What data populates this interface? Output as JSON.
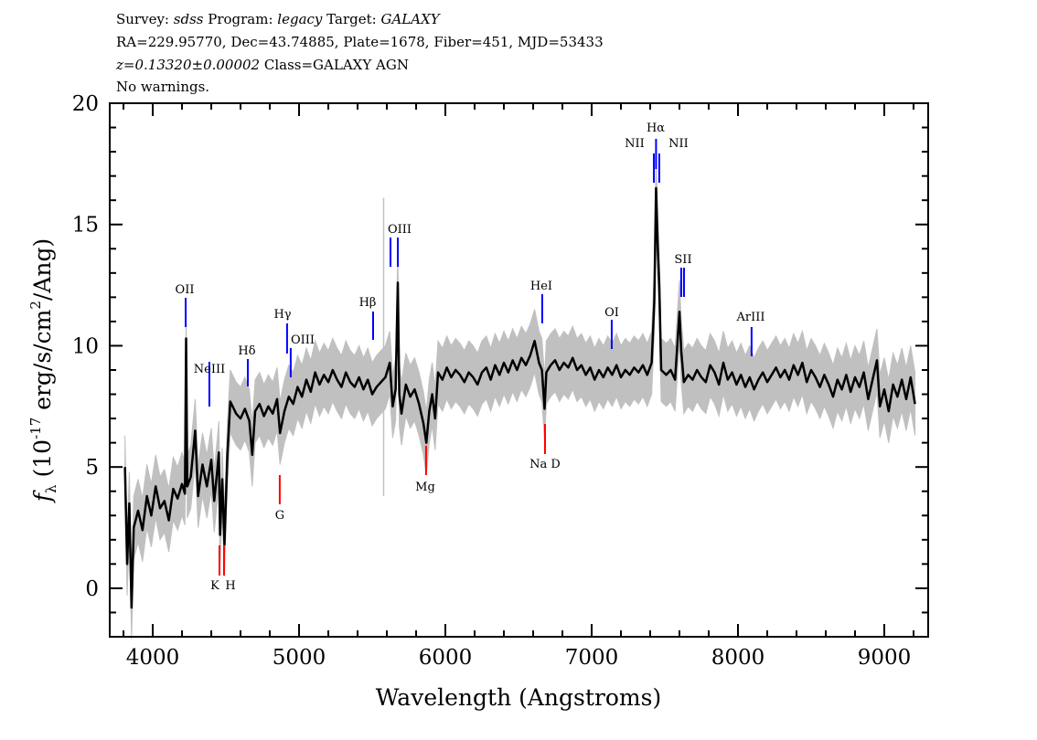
{
  "header": {
    "line1_a": "Survey: ",
    "line1_survey": "sdss",
    "line1_b": " Program: ",
    "line1_program": "legacy",
    "line1_c": " Target: ",
    "line1_target": "GALAXY",
    "line2": "RA=229.95770, Dec=43.74885, Plate=1678, Fiber=451, MJD=53433",
    "line3_z": "z=0.13320±0.00002",
    "line3_class": " Class=GALAXY AGN",
    "line4": "No warnings."
  },
  "chart_data": {
    "type": "line",
    "xlabel": "Wavelength (Angstroms)",
    "ylabel_symbol": "f",
    "ylabel_sub": "λ",
    "ylabel_rest": " (10",
    "ylabel_exp": "-17",
    "ylabel_units": " erg/s/cm",
    "ylabel_exp2": "2",
    "ylabel_end": "/Ang)",
    "xlim": [
      3706,
      9300
    ],
    "ylim": [
      -2,
      20
    ],
    "xticks": [
      4000,
      5000,
      6000,
      7000,
      8000,
      9000
    ],
    "yticks": [
      0,
      5,
      10,
      15,
      20
    ],
    "grid": false,
    "colors": {
      "spectrum": "#000000",
      "noise": "#c0c0c0",
      "emission": "#0000ff",
      "absorption": "#ff0000"
    },
    "sky_line": 5578,
    "spectrum": [
      [
        3810,
        5.0
      ],
      [
        3825,
        1.0
      ],
      [
        3840,
        3.5
      ],
      [
        3855,
        -0.8
      ],
      [
        3870,
        2.5
      ],
      [
        3900,
        3.2
      ],
      [
        3930,
        2.4
      ],
      [
        3960,
        3.8
      ],
      [
        3990,
        3.0
      ],
      [
        4020,
        4.2
      ],
      [
        4050,
        3.3
      ],
      [
        4080,
        3.6
      ],
      [
        4110,
        2.8
      ],
      [
        4140,
        4.1
      ],
      [
        4170,
        3.7
      ],
      [
        4200,
        4.3
      ],
      [
        4220,
        3.9
      ],
      [
        4228,
        10.3
      ],
      [
        4236,
        4.2
      ],
      [
        4260,
        4.6
      ],
      [
        4290,
        6.5
      ],
      [
        4310,
        3.8
      ],
      [
        4340,
        5.1
      ],
      [
        4370,
        4.2
      ],
      [
        4400,
        5.3
      ],
      [
        4420,
        3.6
      ],
      [
        4440,
        4.8
      ],
      [
        4452,
        5.6
      ],
      [
        4460,
        2.2
      ],
      [
        4475,
        4.5
      ],
      [
        4490,
        1.8
      ],
      [
        4510,
        5.5
      ],
      [
        4530,
        7.7
      ],
      [
        4570,
        7.2
      ],
      [
        4600,
        7.0
      ],
      [
        4630,
        7.4
      ],
      [
        4660,
        6.9
      ],
      [
        4680,
        5.5
      ],
      [
        4700,
        7.3
      ],
      [
        4730,
        7.6
      ],
      [
        4760,
        7.1
      ],
      [
        4790,
        7.5
      ],
      [
        4820,
        7.2
      ],
      [
        4850,
        7.8
      ],
      [
        4870,
        6.4
      ],
      [
        4900,
        7.3
      ],
      [
        4930,
        7.9
      ],
      [
        4960,
        7.6
      ],
      [
        4990,
        8.3
      ],
      [
        5020,
        7.9
      ],
      [
        5050,
        8.6
      ],
      [
        5080,
        8.1
      ],
      [
        5110,
        8.9
      ],
      [
        5140,
        8.4
      ],
      [
        5170,
        8.8
      ],
      [
        5200,
        8.5
      ],
      [
        5230,
        9.0
      ],
      [
        5260,
        8.6
      ],
      [
        5290,
        8.3
      ],
      [
        5320,
        8.9
      ],
      [
        5350,
        8.5
      ],
      [
        5380,
        8.3
      ],
      [
        5410,
        8.7
      ],
      [
        5440,
        8.2
      ],
      [
        5470,
        8.6
      ],
      [
        5500,
        8.0
      ],
      [
        5530,
        8.3
      ],
      [
        5560,
        8.5
      ],
      [
        5590,
        8.7
      ],
      [
        5620,
        9.3
      ],
      [
        5640,
        7.5
      ],
      [
        5660,
        8.2
      ],
      [
        5675,
        12.6
      ],
      [
        5685,
        8.0
      ],
      [
        5700,
        7.2
      ],
      [
        5730,
        8.4
      ],
      [
        5760,
        7.9
      ],
      [
        5790,
        8.2
      ],
      [
        5820,
        7.6
      ],
      [
        5850,
        6.8
      ],
      [
        5870,
        6.0
      ],
      [
        5890,
        7.3
      ],
      [
        5910,
        8.0
      ],
      [
        5930,
        7.0
      ],
      [
        5950,
        8.9
      ],
      [
        5980,
        8.6
      ],
      [
        6010,
        9.1
      ],
      [
        6040,
        8.7
      ],
      [
        6070,
        9.0
      ],
      [
        6100,
        8.8
      ],
      [
        6130,
        8.5
      ],
      [
        6160,
        8.9
      ],
      [
        6190,
        8.7
      ],
      [
        6220,
        8.4
      ],
      [
        6250,
        8.9
      ],
      [
        6280,
        9.1
      ],
      [
        6310,
        8.6
      ],
      [
        6340,
        9.2
      ],
      [
        6370,
        8.8
      ],
      [
        6400,
        9.3
      ],
      [
        6430,
        8.9
      ],
      [
        6460,
        9.4
      ],
      [
        6490,
        9.0
      ],
      [
        6520,
        9.5
      ],
      [
        6550,
        9.2
      ],
      [
        6580,
        9.6
      ],
      [
        6610,
        10.2
      ],
      [
        6640,
        9.3
      ],
      [
        6660,
        9.0
      ],
      [
        6678,
        7.4
      ],
      [
        6690,
        8.9
      ],
      [
        6720,
        9.2
      ],
      [
        6750,
        9.4
      ],
      [
        6780,
        9.0
      ],
      [
        6810,
        9.3
      ],
      [
        6840,
        9.1
      ],
      [
        6870,
        9.5
      ],
      [
        6900,
        9.0
      ],
      [
        6930,
        9.2
      ],
      [
        6960,
        8.8
      ],
      [
        6990,
        9.1
      ],
      [
        7020,
        8.6
      ],
      [
        7050,
        9.0
      ],
      [
        7080,
        8.7
      ],
      [
        7110,
        9.1
      ],
      [
        7140,
        8.8
      ],
      [
        7170,
        9.2
      ],
      [
        7200,
        8.7
      ],
      [
        7230,
        9.0
      ],
      [
        7260,
        8.8
      ],
      [
        7290,
        9.1
      ],
      [
        7320,
        8.9
      ],
      [
        7350,
        9.2
      ],
      [
        7380,
        8.8
      ],
      [
        7410,
        9.3
      ],
      [
        7428,
        11.8
      ],
      [
        7440,
        16.5
      ],
      [
        7452,
        14.0
      ],
      [
        7462,
        12.5
      ],
      [
        7475,
        9.0
      ],
      [
        7510,
        8.8
      ],
      [
        7540,
        9.0
      ],
      [
        7570,
        8.6
      ],
      [
        7600,
        11.4
      ],
      [
        7612,
        9.8
      ],
      [
        7630,
        8.5
      ],
      [
        7660,
        8.8
      ],
      [
        7690,
        8.6
      ],
      [
        7720,
        9.0
      ],
      [
        7750,
        8.7
      ],
      [
        7780,
        8.5
      ],
      [
        7810,
        9.2
      ],
      [
        7840,
        8.9
      ],
      [
        7870,
        8.4
      ],
      [
        7900,
        9.3
      ],
      [
        7930,
        8.6
      ],
      [
        7960,
        8.9
      ],
      [
        7990,
        8.4
      ],
      [
        8020,
        8.8
      ],
      [
        8050,
        8.3
      ],
      [
        8080,
        8.7
      ],
      [
        8110,
        8.2
      ],
      [
        8140,
        8.6
      ],
      [
        8170,
        8.9
      ],
      [
        8200,
        8.5
      ],
      [
        8230,
        8.8
      ],
      [
        8260,
        9.1
      ],
      [
        8290,
        8.7
      ],
      [
        8320,
        9.0
      ],
      [
        8350,
        8.6
      ],
      [
        8380,
        9.2
      ],
      [
        8410,
        8.8
      ],
      [
        8440,
        9.3
      ],
      [
        8470,
        8.5
      ],
      [
        8500,
        9.0
      ],
      [
        8530,
        8.7
      ],
      [
        8560,
        8.3
      ],
      [
        8590,
        8.8
      ],
      [
        8620,
        8.4
      ],
      [
        8650,
        7.9
      ],
      [
        8680,
        8.6
      ],
      [
        8710,
        8.2
      ],
      [
        8740,
        8.8
      ],
      [
        8770,
        8.1
      ],
      [
        8800,
        8.7
      ],
      [
        8830,
        8.3
      ],
      [
        8860,
        8.9
      ],
      [
        8890,
        7.8
      ],
      [
        8920,
        8.6
      ],
      [
        8950,
        9.4
      ],
      [
        8970,
        7.5
      ],
      [
        9000,
        8.2
      ],
      [
        9030,
        7.3
      ],
      [
        9060,
        8.4
      ],
      [
        9090,
        7.9
      ],
      [
        9120,
        8.6
      ],
      [
        9150,
        7.8
      ],
      [
        9180,
        8.7
      ],
      [
        9210,
        7.6
      ]
    ],
    "noise_amplitude": 1.3,
    "lines": [
      {
        "label": "OII",
        "wavelength": 4225,
        "kind": "emission"
      },
      {
        "label": "NeIII",
        "wavelength": 4387,
        "kind": "emission"
      },
      {
        "label": "Hδ",
        "wavelength": 4650,
        "kind": "emission"
      },
      {
        "label": "Hγ",
        "wavelength": 4918,
        "kind": "emission"
      },
      {
        "label": "OIII",
        "wavelength": 4943,
        "kind": "emission"
      },
      {
        "label": "Hβ",
        "wavelength": 5506,
        "kind": "emission"
      },
      {
        "label": "",
        "wavelength": 5625,
        "kind": "emission"
      },
      {
        "label": "OIII",
        "wavelength": 5675,
        "kind": "emission"
      },
      {
        "label": "HeI",
        "wavelength": 6662,
        "kind": "emission"
      },
      {
        "label": "OI",
        "wavelength": 7137,
        "kind": "emission"
      },
      {
        "label": "NII",
        "wavelength": 7425,
        "kind": "emission"
      },
      {
        "label": "Hα",
        "wavelength": 7440,
        "kind": "emission"
      },
      {
        "label": "NII",
        "wavelength": 7462,
        "kind": "emission"
      },
      {
        "label": "SII",
        "wavelength": 7612,
        "kind": "emission"
      },
      {
        "label": "",
        "wavelength": 7631,
        "kind": "emission"
      },
      {
        "label": "ArIII",
        "wavelength": 8093,
        "kind": "emission"
      },
      {
        "label": "K",
        "wavelength": 4456,
        "kind": "absorption"
      },
      {
        "label": "H",
        "wavelength": 4487,
        "kind": "absorption"
      },
      {
        "label": "G",
        "wavelength": 4868,
        "kind": "absorption"
      },
      {
        "label": "Mg",
        "wavelength": 5868,
        "kind": "absorption"
      },
      {
        "label": "Na D",
        "wavelength": 6681,
        "kind": "absorption"
      }
    ]
  }
}
